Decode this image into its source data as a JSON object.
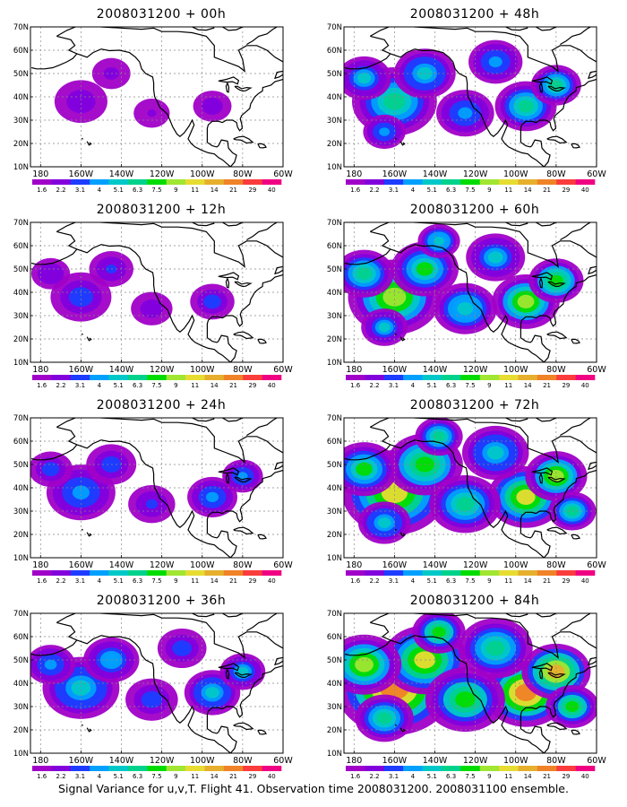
{
  "caption": "Signal Variance for u,v,T. Flight 41. Observation time 2008031200. 2008031100 ensemble.",
  "axes": {
    "lat_labels": [
      "10N",
      "20N",
      "30N",
      "40N",
      "50N",
      "60N",
      "70N"
    ],
    "lon_labels": [
      "180",
      "160W",
      "140W",
      "120W",
      "100W",
      "80W",
      "60W"
    ]
  },
  "colorbar": {
    "labels": [
      "1.6",
      "2.2",
      "3.1",
      "4",
      "5.1",
      "6.3",
      "7.5",
      "9",
      "11",
      "14",
      "21",
      "29",
      "40"
    ],
    "colors": [
      "#a000c8",
      "#8200dc",
      "#1e3cff",
      "#00a0ff",
      "#00c8c8",
      "#00d28c",
      "#00dc00",
      "#a0e632",
      "#e6dc32",
      "#e6af2d",
      "#f08228",
      "#fa3c3c",
      "#f00082"
    ]
  },
  "panels": [
    {
      "title": "2008031200 + 00h",
      "level": 0.05
    },
    {
      "title": "2008031200 + 48h",
      "level": 0.45
    },
    {
      "title": "2008031200 + 12h",
      "level": 0.15
    },
    {
      "title": "2008031200 + 60h",
      "level": 0.55
    },
    {
      "title": "2008031200 + 24h",
      "level": 0.25
    },
    {
      "title": "2008031200 + 72h",
      "level": 0.7
    },
    {
      "title": "2008031200 + 36h",
      "level": 0.35
    },
    {
      "title": "2008031200 + 84h",
      "level": 0.85
    }
  ]
}
